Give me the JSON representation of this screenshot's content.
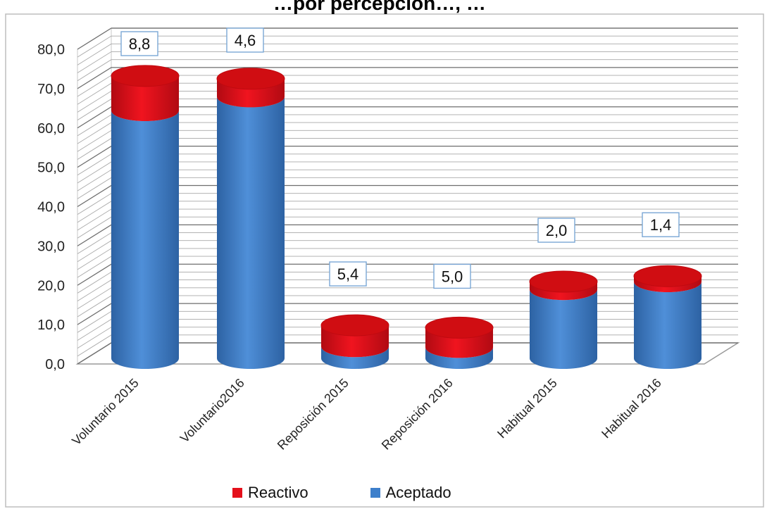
{
  "chart_data": {
    "type": "bar",
    "title": "…por percepción…, …",
    "categories": [
      "Voluntario 2015",
      "Voluntario2016",
      "Reposición 2015",
      "Reposición 2016",
      "Habitual 2015",
      "Habitual 2016"
    ],
    "series": [
      {
        "name": "Aceptado",
        "color": "#3d7fcb",
        "values": [
          63.0,
          66.5,
          3.0,
          2.8,
          17.5,
          19.5
        ]
      },
      {
        "name": "Reactivo",
        "color": "#e4101b",
        "values": [
          8.8,
          4.6,
          5.4,
          5.0,
          2.0,
          1.4
        ]
      }
    ],
    "data_labels": [
      "8,8",
      "4,6",
      "5,4",
      "5,0",
      "2,0",
      "1,4"
    ],
    "yticks": [
      "0,0",
      "10,0",
      "20,0",
      "30,0",
      "40,0",
      "50,0",
      "60,0",
      "70,0",
      "80,0"
    ],
    "ylim": [
      0,
      80
    ],
    "grid": true,
    "legend_position": "bottom",
    "style": "3d-cylinder"
  }
}
